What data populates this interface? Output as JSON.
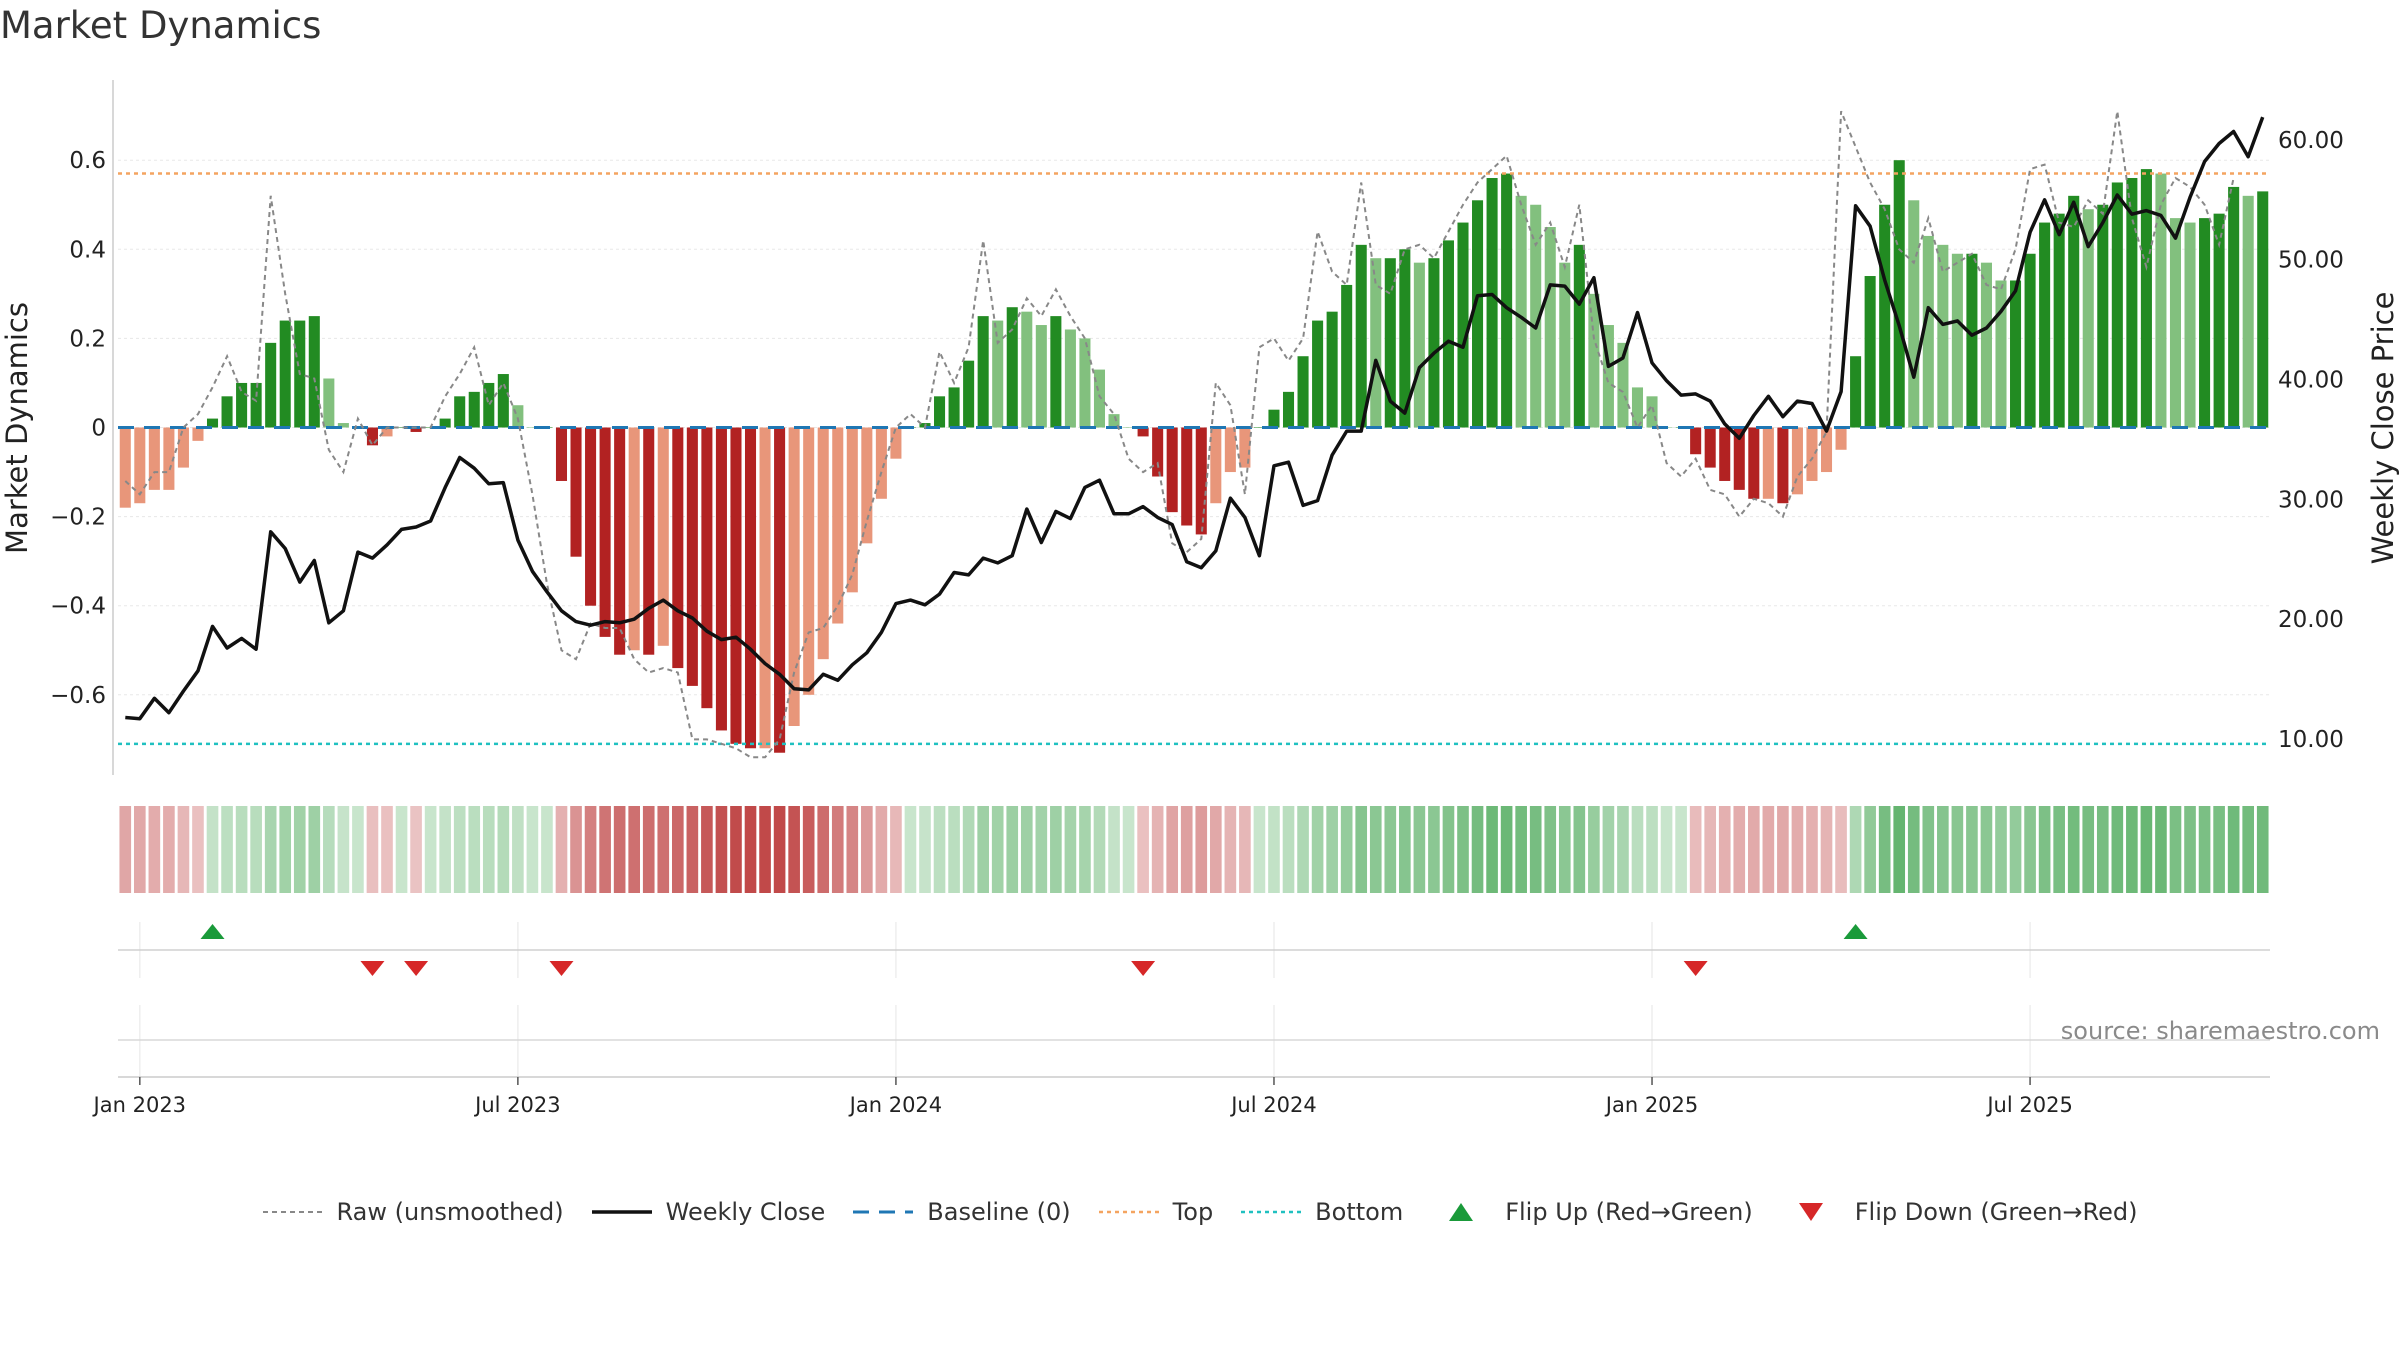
{
  "page": {
    "title": "Market Dynamics",
    "source": "source: sharemaestro.com"
  },
  "colors": {
    "strong_green": "#228b22",
    "light_green": "#82c07e",
    "strong_red": "#b22222",
    "light_red": "#e8967a",
    "close_line": "#111111",
    "raw_line": "#888888",
    "baseline": "#1f77b4",
    "top": "#f4a460",
    "bottom": "#20c0c0",
    "flip_up": "#1a9a3a",
    "flip_down": "#d62728"
  },
  "chart_data": {
    "type": "bar+line",
    "title": "Market Dynamics",
    "ylabel": "Market Dynamics",
    "ylabel_right": "Weekly Close Price",
    "y_ticks": [
      "0.6",
      "0.4",
      "0.2",
      "0",
      "−0.2",
      "−0.4",
      "−0.6"
    ],
    "y_tick_values": [
      0.6,
      0.4,
      0.2,
      0,
      -0.2,
      -0.4,
      -0.6
    ],
    "ylim": [
      -0.78,
      0.78
    ],
    "y2_ticks": [
      "60.00",
      "50.00",
      "40.00",
      "30.00",
      "20.00",
      "10.00"
    ],
    "y2_tick_values": [
      60,
      50,
      40,
      30,
      20,
      10
    ],
    "y2lim": [
      7.0,
      65.0
    ],
    "x_ticks": [
      "Jan 2023",
      "Jul 2023",
      "Jan 2024",
      "Jul 2024",
      "Jan 2025",
      "Jul 2025"
    ],
    "x_tick_weeks": [
      1,
      27,
      53,
      79,
      105,
      131
    ],
    "top_level": 0.57,
    "bottom_level": -0.71,
    "baseline": 0,
    "legend_position": "bottom",
    "legend": [
      "Raw (unsmoothed)",
      "Weekly Close",
      "Baseline (0)",
      "Top",
      "Bottom",
      "Flip Up (Red→Green)",
      "Flip Down (Green→Red)"
    ],
    "momentum": [
      -0.18,
      -0.17,
      -0.14,
      -0.14,
      -0.09,
      -0.03,
      0.02,
      0.07,
      0.1,
      0.1,
      0.19,
      0.24,
      0.24,
      0.25,
      0.11,
      0.01,
      0.0,
      -0.04,
      -0.02,
      0.0,
      -0.01,
      0.0,
      0.02,
      0.07,
      0.08,
      0.1,
      0.12,
      0.05,
      0.0,
      0.0,
      -0.12,
      -0.29,
      -0.4,
      -0.47,
      -0.51,
      -0.5,
      -0.51,
      -0.49,
      -0.54,
      -0.58,
      -0.63,
      -0.68,
      -0.71,
      -0.72,
      -0.72,
      -0.73,
      -0.67,
      -0.6,
      -0.52,
      -0.44,
      -0.37,
      -0.26,
      -0.16,
      -0.07,
      0.0,
      0.01,
      0.07,
      0.09,
      0.15,
      0.25,
      0.24,
      0.27,
      0.26,
      0.23,
      0.25,
      0.22,
      0.2,
      0.13,
      0.03,
      0.0,
      -0.02,
      -0.11,
      -0.19,
      -0.22,
      -0.24,
      -0.17,
      -0.1,
      -0.09,
      0.0,
      0.04,
      0.08,
      0.16,
      0.24,
      0.26,
      0.32,
      0.41,
      0.38,
      0.38,
      0.4,
      0.37,
      0.38,
      0.42,
      0.46,
      0.51,
      0.56,
      0.57,
      0.52,
      0.5,
      0.45,
      0.37,
      0.41,
      0.3,
      0.23,
      0.19,
      0.09,
      0.07,
      0.0,
      0.0,
      -0.06,
      -0.09,
      -0.12,
      -0.14,
      -0.16,
      -0.16,
      -0.17,
      -0.15,
      -0.12,
      -0.1,
      -0.05,
      0.16,
      0.34,
      0.5,
      0.6,
      0.51,
      0.43,
      0.41,
      0.39,
      0.39,
      0.37,
      0.33,
      0.33,
      0.39,
      0.46,
      0.48,
      0.52,
      0.49,
      0.5,
      0.55,
      0.56,
      0.58,
      0.57,
      0.47,
      0.46,
      0.47,
      0.48,
      0.54,
      0.52,
      0.53
    ],
    "raw": [
      -0.12,
      -0.15,
      -0.1,
      -0.1,
      0.0,
      0.03,
      0.09,
      0.16,
      0.08,
      0.06,
      0.52,
      0.3,
      0.12,
      0.11,
      -0.05,
      -0.1,
      0.02,
      -0.04,
      0.0,
      0.0,
      0.0,
      0.0,
      0.07,
      0.12,
      0.18,
      0.05,
      0.1,
      0.02,
      -0.15,
      -0.35,
      -0.5,
      -0.52,
      -0.44,
      -0.45,
      -0.45,
      -0.52,
      -0.55,
      -0.54,
      -0.55,
      -0.7,
      -0.7,
      -0.71,
      -0.72,
      -0.74,
      -0.74,
      -0.7,
      -0.55,
      -0.46,
      -0.45,
      -0.4,
      -0.33,
      -0.21,
      -0.1,
      0.0,
      0.03,
      0.0,
      0.17,
      0.1,
      0.18,
      0.42,
      0.19,
      0.22,
      0.29,
      0.25,
      0.31,
      0.25,
      0.2,
      0.07,
      0.03,
      -0.07,
      -0.1,
      -0.08,
      -0.26,
      -0.28,
      -0.25,
      0.1,
      0.05,
      -0.15,
      0.18,
      0.2,
      0.15,
      0.2,
      0.44,
      0.35,
      0.32,
      0.55,
      0.32,
      0.3,
      0.4,
      0.41,
      0.38,
      0.44,
      0.5,
      0.55,
      0.58,
      0.61,
      0.5,
      0.41,
      0.46,
      0.36,
      0.5,
      0.2,
      0.1,
      0.08,
      0.0,
      0.05,
      -0.08,
      -0.11,
      -0.07,
      -0.14,
      -0.15,
      -0.2,
      -0.16,
      -0.17,
      -0.2,
      -0.11,
      -0.07,
      -0.01,
      0.71,
      0.63,
      0.55,
      0.49,
      0.4,
      0.37,
      0.47,
      0.35,
      0.37,
      0.39,
      0.32,
      0.31,
      0.4,
      0.58,
      0.59,
      0.46,
      0.45,
      0.51,
      0.48,
      0.71,
      0.47,
      0.36,
      0.5,
      0.56,
      0.54,
      0.5,
      0.41,
      0.56
    ],
    "close": [
      11.8,
      11.7,
      13.4,
      12.2,
      14.0,
      15.7,
      19.4,
      17.6,
      18.4,
      17.5,
      27.3,
      25.9,
      23.1,
      24.9,
      19.7,
      20.7,
      25.6,
      25.1,
      26.2,
      27.5,
      27.7,
      28.2,
      31.0,
      33.5,
      32.6,
      31.3,
      31.4,
      26.6,
      24.0,
      22.3,
      20.7,
      19.8,
      19.5,
      19.8,
      19.7,
      20.0,
      20.9,
      21.6,
      20.7,
      20.1,
      19.0,
      18.3,
      18.5,
      17.5,
      16.3,
      15.4,
      14.2,
      14.1,
      15.4,
      14.9,
      16.2,
      17.2,
      18.9,
      21.3,
      21.6,
      21.2,
      22.1,
      23.9,
      23.7,
      25.1,
      24.7,
      25.3,
      29.2,
      26.4,
      29.0,
      28.4,
      31.0,
      31.6,
      28.8,
      28.8,
      29.4,
      28.5,
      27.9,
      24.8,
      24.3,
      25.7,
      30.1,
      28.5,
      25.3,
      32.8,
      33.1,
      29.5,
      29.9,
      33.7,
      35.7,
      35.7,
      41.6,
      38.2,
      37.2,
      41.0,
      42.2,
      43.2,
      42.7,
      47.0,
      47.1,
      46.0,
      45.2,
      44.3,
      47.9,
      47.8,
      46.3,
      48.5,
      41.1,
      41.8,
      45.6,
      41.4,
      39.9,
      38.7,
      38.8,
      38.2,
      36.3,
      35.1,
      37.0,
      38.6,
      36.9,
      38.2,
      38.0,
      35.7,
      39.0,
      54.5,
      52.8,
      48.3,
      44.5,
      40.2,
      46.0,
      44.6,
      44.9,
      43.7,
      44.3,
      45.7,
      47.4,
      52.3,
      55.0,
      52.1,
      54.8,
      51.1,
      53.1,
      55.4,
      53.8,
      54.1,
      53.7,
      51.8,
      55.2,
      58.2,
      59.7,
      60.7,
      58.6,
      61.9
    ]
  }
}
